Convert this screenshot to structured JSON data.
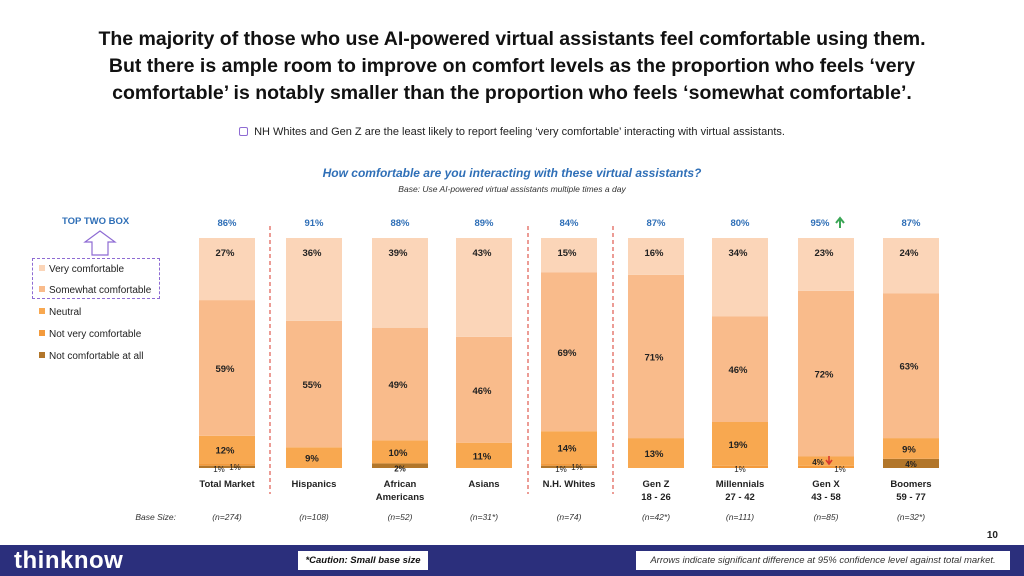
{
  "title": {
    "line1": "The majority of those who use AI-powered virtual assistants feel comfortable using them.",
    "line2": "But there is ample room to improve on comfort levels as the proportion who feels ‘very",
    "line3": "comfortable’ is notably smaller than the proportion who feels ‘somewhat comfortable’."
  },
  "note": "NH Whites and Gen Z are the least likely to report feeling ‘very comfortable’ interacting with virtual assistants.",
  "question": "How comfortable are you interacting with these virtual assistants?",
  "base_note": "Base: Use AI-powered virtual assistants multiple times a day",
  "top_two_box_label": "TOP TWO BOX",
  "base_size_label": "Base Size:",
  "page_number": "10",
  "brand": "thinknow",
  "caution": "*Caution: Small base size",
  "arrows_note": "Arrows indicate significant difference at 95% confidence level against total market.",
  "legend": [
    {
      "label": "Very comfortable",
      "color": "#fbd5b8"
    },
    {
      "label": "Somewhat comfortable",
      "color": "#f9bb8b"
    },
    {
      "label": "Neutral",
      "color": "#f8a850"
    },
    {
      "label": "Not very comfortable",
      "color": "#f39a3c"
    },
    {
      "label": "Not comfortable at all",
      "color": "#b2762a"
    }
  ],
  "colors": {
    "accent_blue": "#2f6fb7",
    "divider_red": "#e05a4f",
    "arrow_green": "#3aa655",
    "arrow_red": "#d83a2e",
    "footer_navy": "#2b2f7c"
  },
  "chart_data": {
    "type": "bar",
    "stacked": true,
    "unit": "%",
    "segment_order_bottom_to_top": [
      "Not comfortable at all",
      "Not very comfortable",
      "Neutral",
      "Somewhat comfortable",
      "Very comfortable"
    ],
    "groups": [
      {
        "label": [
          "Total Market"
        ],
        "base": "(n=274)",
        "top_two_box": "86%",
        "values": [
          1,
          1,
          12,
          59,
          27
        ],
        "labels": [
          "1%",
          "1%",
          "12%",
          "59%",
          "27%"
        ]
      },
      {
        "label": [
          "Hispanics"
        ],
        "base": "(n=108)",
        "top_two_box": "91%",
        "values": [
          0,
          0,
          9,
          55,
          36
        ],
        "labels": [
          "",
          "",
          "9%",
          "55%",
          "36%"
        ]
      },
      {
        "label": [
          "African",
          "Americans"
        ],
        "base": "(n=52)",
        "top_two_box": "88%",
        "values": [
          2,
          0,
          10,
          49,
          39
        ],
        "labels": [
          "2%",
          "",
          "10%",
          "49%",
          "39%"
        ]
      },
      {
        "label": [
          "Asians"
        ],
        "base": "(n=31*)",
        "top_two_box": "89%",
        "values": [
          0,
          0,
          11,
          46,
          43
        ],
        "labels": [
          "",
          "",
          "11%",
          "46%",
          "43%"
        ]
      },
      {
        "label": [
          "N.H. Whites"
        ],
        "base": "(n=74)",
        "top_two_box": "84%",
        "values": [
          1,
          1,
          14,
          69,
          15
        ],
        "labels": [
          "1%",
          "1%",
          "14%",
          "69%",
          "15%"
        ]
      },
      {
        "label": [
          "Gen Z",
          "18 - 26"
        ],
        "base": "(n=42*)",
        "top_two_box": "87%",
        "values": [
          0,
          0,
          13,
          71,
          16
        ],
        "labels": [
          "",
          "",
          "13%",
          "71%",
          "16%"
        ]
      },
      {
        "label": [
          "Millennials",
          "27 - 42"
        ],
        "base": "(n=111)",
        "top_two_box": "80%",
        "values": [
          0,
          1,
          19,
          46,
          34
        ],
        "labels": [
          "",
          "1%",
          "19%",
          "46%",
          "34%"
        ]
      },
      {
        "label": [
          "Gen X",
          "43 - 58"
        ],
        "base": "(n=85)",
        "top_two_box": "95%",
        "top_two_box_arrow": "up",
        "values": [
          0,
          1,
          4,
          72,
          23
        ],
        "labels": [
          "",
          "1%",
          "4%",
          "72%",
          "23%"
        ],
        "neutral_arrow": "down"
      },
      {
        "label": [
          "Boomers",
          "59 - 77"
        ],
        "base": "(n=32*)",
        "top_two_box": "87%",
        "values": [
          4,
          0,
          9,
          63,
          24
        ],
        "labels": [
          "4%",
          "",
          "9%",
          "63%",
          "24%"
        ]
      }
    ]
  }
}
